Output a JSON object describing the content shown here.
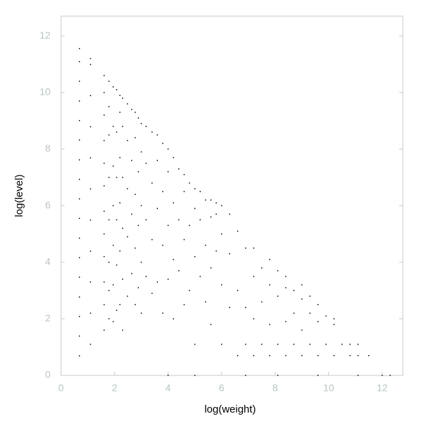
{
  "chart_data": {
    "type": "scatter",
    "xlabel": "log(weight)",
    "ylabel": "log(level)",
    "xlim": [
      0,
      12.77
    ],
    "ylim": [
      0,
      12.7
    ],
    "xticks": [
      0,
      2,
      4,
      6,
      8,
      10,
      12
    ],
    "yticks": [
      0,
      2,
      4,
      6,
      8,
      10,
      12
    ],
    "color": "#000000",
    "x": [
      0.69,
      0.69,
      0.69,
      0.69,
      0.69,
      0.69,
      0.69,
      0.69,
      0.69,
      0.69,
      0.69,
      0.69,
      0.69,
      0.69,
      0.69,
      0.69,
      0.69,
      1.1,
      1.1,
      1.1,
      1.1,
      1.1,
      1.1,
      1.1,
      1.1,
      1.1,
      1.1,
      1.1,
      1.61,
      1.61,
      1.61,
      1.61,
      1.61,
      1.61,
      1.61,
      1.61,
      1.61,
      1.61,
      1.61,
      1.61,
      1.79,
      1.79,
      1.79,
      1.79,
      1.79,
      1.79,
      1.79,
      1.79,
      1.95,
      1.95,
      1.95,
      1.95,
      1.95,
      1.95,
      1.95,
      2.08,
      2.08,
      2.08,
      2.08,
      2.08,
      2.08,
      2.2,
      2.2,
      2.2,
      2.2,
      2.2,
      2.2,
      2.3,
      2.3,
      2.3,
      2.3,
      2.3,
      2.3,
      2.48,
      2.48,
      2.48,
      2.48,
      2.48,
      2.64,
      2.64,
      2.64,
      2.64,
      2.77,
      2.77,
      2.77,
      2.77,
      2.77,
      2.89,
      2.89,
      2.89,
      2.89,
      3.0,
      3.0,
      3.0,
      3.0,
      3.0,
      3.18,
      3.18,
      3.18,
      3.18,
      3.4,
      3.4,
      3.4,
      3.4,
      3.6,
      3.6,
      3.6,
      3.6,
      3.8,
      3.8,
      3.8,
      3.8,
      4.0,
      4.0,
      4.0,
      4.0,
      4.0,
      4.2,
      4.2,
      4.2,
      4.2,
      4.4,
      4.4,
      4.4,
      4.6,
      4.6,
      4.6,
      4.6,
      4.8,
      4.8,
      4.8,
      5.0,
      5.0,
      5.0,
      5.0,
      5.0,
      5.2,
      5.2,
      5.2,
      5.4,
      5.4,
      5.4,
      5.6,
      5.6,
      5.6,
      5.6,
      5.8,
      5.8,
      5.8,
      6.0,
      6.0,
      6.0,
      6.0,
      6.3,
      6.3,
      6.3,
      6.6,
      6.6,
      6.6,
      6.9,
      6.9,
      6.9,
      6.9,
      7.2,
      7.2,
      7.2,
      7.2,
      7.5,
      7.5,
      7.5,
      7.8,
      7.8,
      7.8,
      7.8,
      8.1,
      8.1,
      8.1,
      8.1,
      8.4,
      8.4,
      8.4,
      8.4,
      8.7,
      8.7,
      8.7,
      9.0,
      9.0,
      9.0,
      9.0,
      9.3,
      9.3,
      9.3,
      9.6,
      9.6,
      9.6,
      9.6,
      9.9,
      9.9,
      10.2,
      10.2,
      10.2,
      10.5,
      10.8,
      10.8,
      11.1,
      11.1,
      11.1,
      11.5,
      12.0,
      12.3
    ],
    "values": [
      0.69,
      1.39,
      2.08,
      2.77,
      3.47,
      4.16,
      4.85,
      5.55,
      6.24,
      6.93,
      7.62,
      8.32,
      9.01,
      9.7,
      10.4,
      11.09,
      11.55,
      1.1,
      2.2,
      3.3,
      4.39,
      5.49,
      6.59,
      7.69,
      8.79,
      9.89,
      10.99,
      11.2,
      1.6,
      2.5,
      3.3,
      4.2,
      5.0,
      5.8,
      6.7,
      7.5,
      8.3,
      9.2,
      10.0,
      10.6,
      2.0,
      3.0,
      4.0,
      5.5,
      7.0,
      8.5,
      9.5,
      10.4,
      1.9,
      3.2,
      4.6,
      6.0,
      7.4,
      8.8,
      10.2,
      2.3,
      3.9,
      5.5,
      7.0,
      8.6,
      10.1,
      2.5,
      4.4,
      6.1,
      7.7,
      9.3,
      9.9,
      1.6,
      3.4,
      5.2,
      7.0,
      8.8,
      9.8,
      2.8,
      4.9,
      6.6,
      8.3,
      9.6,
      3.6,
      5.7,
      7.6,
      9.4,
      2.5,
      4.5,
      6.4,
      8.4,
      9.3,
      3.1,
      5.3,
      7.2,
      9.1,
      2.2,
      4.0,
      6.0,
      7.9,
      8.9,
      3.5,
      5.5,
      7.5,
      8.8,
      2.9,
      4.8,
      6.8,
      8.6,
      3.3,
      5.9,
      7.6,
      8.5,
      2.2,
      4.6,
      6.5,
      8.2,
      0.0,
      3.4,
      5.3,
      7.2,
      8.0,
      2.0,
      4.1,
      6.1,
      7.7,
      3.7,
      5.5,
      7.3,
      2.5,
      4.8,
      6.5,
      7.1,
      3.0,
      5.3,
      6.8,
      0.0,
      1.1,
      4.2,
      5.9,
      6.6,
      3.5,
      5.5,
      6.5,
      2.6,
      4.6,
      6.2,
      1.8,
      3.8,
      5.6,
      6.2,
      4.4,
      5.7,
      6.1,
      1.1,
      3.2,
      5.0,
      6.0,
      2.4,
      4.3,
      5.7,
      0.7,
      3.0,
      5.1,
      0.0,
      1.1,
      2.4,
      4.5,
      0.7,
      2.0,
      3.5,
      4.5,
      1.1,
      2.6,
      3.8,
      0.7,
      1.8,
      3.2,
      4.1,
      0.0,
      1.1,
      2.8,
      3.7,
      0.7,
      1.9,
      3.1,
      3.5,
      1.1,
      2.2,
      3.0,
      0.7,
      1.6,
      2.7,
      3.2,
      1.1,
      2.2,
      2.8,
      0.0,
      0.7,
      1.9,
      2.5,
      1.1,
      2.1,
      0.7,
      1.8,
      2.0,
      1.1,
      0.7,
      1.1,
      0.0,
      0.7,
      1.1,
      0.7,
      0.0,
      0.0
    ]
  }
}
